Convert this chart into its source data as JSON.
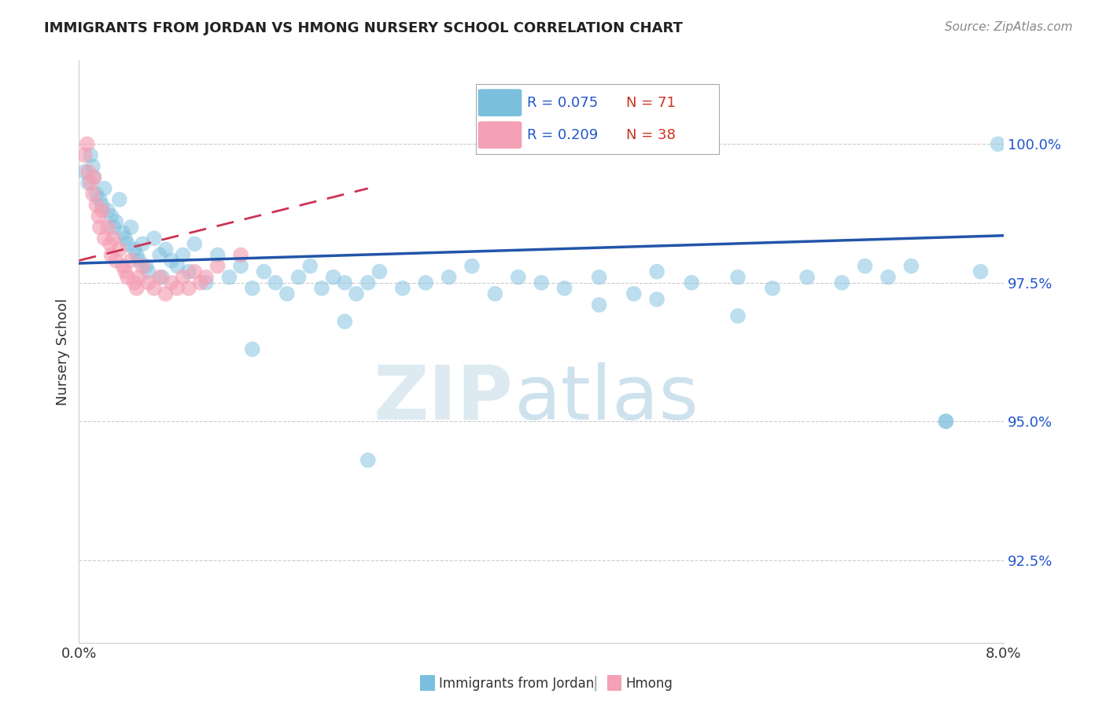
{
  "title": "IMMIGRANTS FROM JORDAN VS HMONG NURSERY SCHOOL CORRELATION CHART",
  "source": "Source: ZipAtlas.com",
  "ylabel": "Nursery School",
  "blue_color": "#7bbfde",
  "pink_color": "#f4a0b5",
  "blue_line_color": "#2255aa",
  "pink_line_color": "#cc3355",
  "x_min": 0.0,
  "x_max": 8.0,
  "y_min": 91.0,
  "y_max": 101.5,
  "y_ticks": [
    92.5,
    95.0,
    97.5,
    100.0
  ],
  "y_tick_labels": [
    "92.5%",
    "95.0%",
    "97.5%",
    "100.0%"
  ],
  "blue_R": 0.075,
  "blue_N": 71,
  "pink_R": 0.209,
  "pink_N": 38,
  "blue_scatter_x": [
    0.05,
    0.08,
    0.1,
    0.12,
    0.13,
    0.15,
    0.18,
    0.2,
    0.22,
    0.25,
    0.28,
    0.3,
    0.32,
    0.35,
    0.38,
    0.4,
    0.42,
    0.45,
    0.48,
    0.5,
    0.52,
    0.55,
    0.58,
    0.6,
    0.65,
    0.7,
    0.72,
    0.75,
    0.8,
    0.85,
    0.9,
    0.95,
    1.0,
    1.1,
    1.2,
    1.3,
    1.4,
    1.5,
    1.6,
    1.7,
    1.8,
    1.9,
    2.0,
    2.1,
    2.2,
    2.3,
    2.4,
    2.5,
    2.6,
    2.8,
    3.0,
    3.2,
    3.4,
    3.6,
    3.8,
    4.0,
    4.2,
    4.5,
    4.8,
    5.0,
    5.3,
    5.7,
    6.0,
    6.3,
    6.6,
    6.8,
    7.0,
    7.2,
    7.5,
    7.8,
    7.95
  ],
  "blue_scatter_y": [
    99.5,
    99.3,
    99.8,
    99.6,
    99.4,
    99.1,
    99.0,
    98.9,
    99.2,
    98.8,
    98.7,
    98.5,
    98.6,
    99.0,
    98.4,
    98.3,
    98.2,
    98.5,
    98.1,
    98.0,
    97.9,
    98.2,
    97.8,
    97.7,
    98.3,
    98.0,
    97.6,
    98.1,
    97.9,
    97.8,
    98.0,
    97.7,
    98.2,
    97.5,
    98.0,
    97.6,
    97.8,
    97.4,
    97.7,
    97.5,
    97.3,
    97.6,
    97.8,
    97.4,
    97.6,
    97.5,
    97.3,
    97.5,
    97.7,
    97.4,
    97.5,
    97.6,
    97.8,
    97.3,
    97.6,
    97.5,
    97.4,
    97.6,
    97.3,
    97.7,
    97.5,
    97.6,
    97.4,
    97.6,
    97.5,
    97.8,
    97.6,
    97.8,
    95.0,
    97.7,
    100.0
  ],
  "blue_scatter_outliers_x": [
    1.5,
    2.3,
    2.5,
    4.5,
    5.0,
    5.7,
    7.5
  ],
  "blue_scatter_outliers_y": [
    96.3,
    96.8,
    94.3,
    97.1,
    97.2,
    96.9,
    95.0
  ],
  "pink_scatter_x": [
    0.05,
    0.07,
    0.08,
    0.1,
    0.12,
    0.13,
    0.15,
    0.17,
    0.18,
    0.2,
    0.22,
    0.25,
    0.27,
    0.28,
    0.3,
    0.32,
    0.35,
    0.38,
    0.4,
    0.42,
    0.45,
    0.48,
    0.5,
    0.52,
    0.55,
    0.6,
    0.65,
    0.7,
    0.75,
    0.8,
    0.85,
    0.9,
    0.95,
    1.0,
    1.05,
    1.1,
    1.2,
    1.4
  ],
  "pink_scatter_y": [
    99.8,
    100.0,
    99.5,
    99.3,
    99.1,
    99.4,
    98.9,
    98.7,
    98.5,
    98.8,
    98.3,
    98.5,
    98.2,
    98.0,
    98.3,
    97.9,
    98.1,
    97.8,
    97.7,
    97.6,
    97.9,
    97.5,
    97.4,
    97.6,
    97.8,
    97.5,
    97.4,
    97.6,
    97.3,
    97.5,
    97.4,
    97.6,
    97.4,
    97.7,
    97.5,
    97.6,
    97.8,
    98.0
  ],
  "blue_line_x0": 0.0,
  "blue_line_x1": 8.0,
  "blue_line_y0": 97.85,
  "blue_line_y1": 98.35,
  "pink_line_x0": 0.0,
  "pink_line_x1": 2.5,
  "pink_line_y0": 97.9,
  "pink_line_y1": 99.2
}
